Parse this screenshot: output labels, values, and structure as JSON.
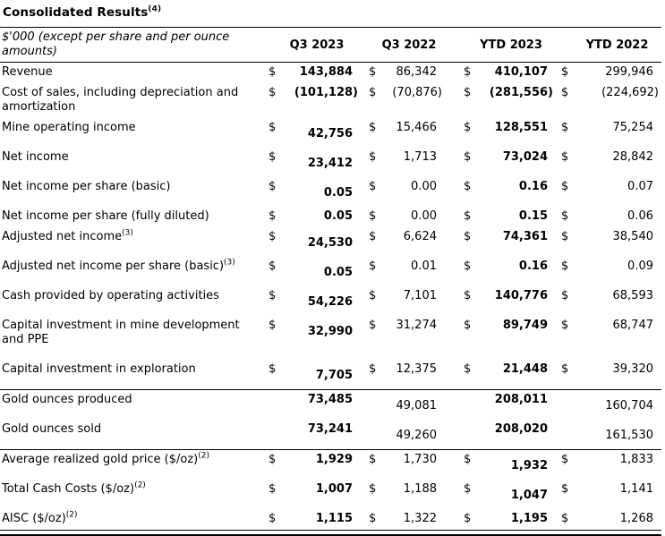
{
  "title": "Consolidated Results",
  "title_sup": "(4)",
  "table": {
    "unit_note": "$'000 (except per share and per ounce amounts)",
    "columns": [
      "Q3 2023",
      "Q3 2022",
      "YTD 2023",
      "YTD 2022"
    ],
    "currency_symbol": "$",
    "bold_columns": [
      0,
      2
    ],
    "rows": [
      {
        "label": "Revenue",
        "sup": "",
        "dollar": true,
        "values": [
          "143,884",
          "86,342",
          "410,107",
          "299,946"
        ],
        "drop": [],
        "rule_after": false
      },
      {
        "label": "Cost of sales, including depreciation and amortization",
        "sup": "",
        "dollar": true,
        "values": [
          "(101,128)",
          "(70,876)",
          "(281,556)",
          "(224,692)"
        ],
        "drop": [],
        "rule_after": false
      },
      {
        "label": "Mine operating income",
        "sup": "",
        "dollar": true,
        "values": [
          "42,756",
          "15,466",
          "128,551",
          "75,254"
        ],
        "drop": [
          0
        ],
        "rule_after": false
      },
      {
        "label": "Net income",
        "sup": "",
        "dollar": true,
        "values": [
          "23,412",
          "1,713",
          "73,024",
          "28,842"
        ],
        "drop": [
          0
        ],
        "rule_after": false
      },
      {
        "label": "Net income per share (basic)",
        "sup": "",
        "dollar": true,
        "values": [
          "0.05",
          "0.00",
          "0.16",
          "0.07"
        ],
        "drop": [
          0
        ],
        "rule_after": false
      },
      {
        "label": "Net income per share (fully diluted)",
        "sup": "",
        "dollar": true,
        "values": [
          "0.05",
          "0.00",
          "0.15",
          "0.06"
        ],
        "drop": [],
        "rule_after": false
      },
      {
        "label": "Adjusted net income",
        "sup": "(3)",
        "dollar": true,
        "values": [
          "24,530",
          "6,624",
          "74,361",
          "38,540"
        ],
        "drop": [
          0
        ],
        "rule_after": false
      },
      {
        "label": "Adjusted net income per share (basic)",
        "sup": "(3)",
        "dollar": true,
        "values": [
          "0.05",
          "0.01",
          "0.16",
          "0.09"
        ],
        "drop": [
          0
        ],
        "rule_after": false
      },
      {
        "label": "Cash provided by operating activities",
        "sup": "",
        "dollar": true,
        "values": [
          "54,226",
          "7,101",
          "140,776",
          "68,593"
        ],
        "drop": [
          0
        ],
        "rule_after": false
      },
      {
        "label": "Capital investment in mine development and PPE",
        "sup": "",
        "dollar": true,
        "values": [
          "32,990",
          "31,274",
          "89,749",
          "68,747"
        ],
        "drop": [
          0
        ],
        "rule_after": false
      },
      {
        "label": "Capital investment in exploration",
        "sup": "",
        "dollar": true,
        "values": [
          "7,705",
          "12,375",
          "21,448",
          "39,320"
        ],
        "drop": [
          0
        ],
        "rule_after": true
      },
      {
        "label": "Gold ounces produced",
        "sup": "",
        "dollar": false,
        "values": [
          "73,485",
          "49,081",
          "208,011",
          "160,704"
        ],
        "drop": [
          1,
          3
        ],
        "rule_after": false
      },
      {
        "label": "Gold ounces sold",
        "sup": "",
        "dollar": false,
        "values": [
          "73,241",
          "49,260",
          "208,020",
          "161,530"
        ],
        "drop": [
          1,
          3
        ],
        "rule_after": true
      },
      {
        "label": "Average realized gold price ($/oz)",
        "sup": "(2)",
        "dollar": true,
        "values": [
          "1,929",
          "1,730",
          "1,932",
          "1,833"
        ],
        "drop": [
          2
        ],
        "rule_after": false
      },
      {
        "label": "Total Cash Costs ($/oz)",
        "sup": "(2)",
        "dollar": true,
        "values": [
          "1,007",
          "1,188",
          "1,047",
          "1,141"
        ],
        "drop": [
          2
        ],
        "rule_after": false
      },
      {
        "label": "AISC ($/oz)",
        "sup": "(2)",
        "dollar": true,
        "values": [
          "1,115",
          "1,322",
          "1,195",
          "1,268"
        ],
        "drop": [],
        "rule_after": true
      }
    ]
  }
}
